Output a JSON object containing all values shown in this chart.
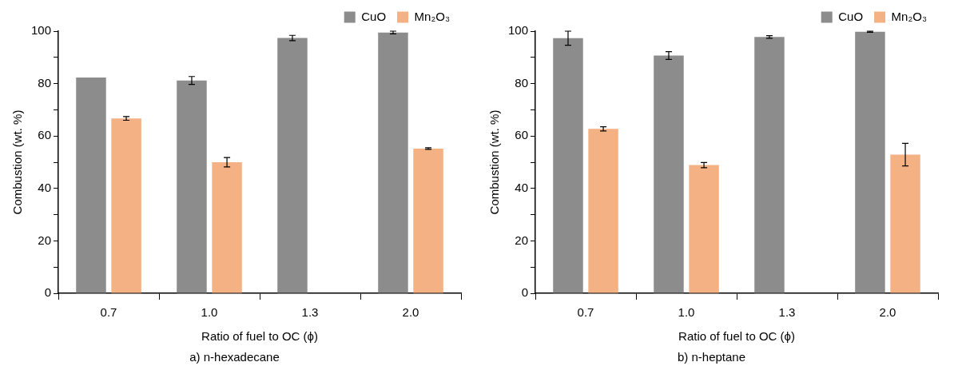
{
  "chart_data": [
    {
      "type": "bar",
      "title": "a) n-hexadecane",
      "xlabel": "Ratio of fuel to OC (ϕ)",
      "ylabel": "Combustion (wt. %)",
      "categories": [
        "0.7",
        "1.0",
        "1.3",
        "2.0"
      ],
      "series": [
        {
          "name": "CuO",
          "color": "#8c8c8c",
          "values": [
            82.3,
            81.2,
            97.4,
            99.5
          ],
          "errors": [
            null,
            1.5,
            1,
            0.5
          ]
        },
        {
          "name": "Mn₂O₃",
          "color": "#f4b183",
          "values": [
            66.7,
            50,
            null,
            55.2
          ],
          "errors": [
            0.7,
            1.8,
            null,
            0.3
          ]
        }
      ],
      "ylim": [
        0,
        100
      ],
      "yticks": [
        0,
        {
          "value": 10,
          "label": null
        },
        20,
        {
          "value": 30,
          "label": null
        },
        40,
        {
          "value": 50,
          "label": null
        },
        60,
        {
          "value": 70,
          "label": null
        },
        80,
        {
          "value": 90,
          "label": null
        },
        100
      ],
      "grid": false,
      "legend": "top right"
    },
    {
      "type": "bar",
      "title": "b) n-heptane",
      "xlabel": "Ratio of fuel to OC (ϕ)",
      "ylabel": "Combustion (wt. %)",
      "categories": [
        "0.7",
        "1.0",
        "1.3",
        "2.0"
      ],
      "series": [
        {
          "name": "CuO",
          "color": "#8c8c8c",
          "values": [
            97.3,
            90.7,
            97.8,
            99.8
          ],
          "errors": [
            2.7,
            1.5,
            0.5,
            0.2
          ]
        },
        {
          "name": "Mn₂O₃",
          "color": "#f4b183",
          "values": [
            62.7,
            48.9,
            null,
            52.9
          ],
          "errors": [
            0.8,
            1,
            null,
            4.3
          ]
        }
      ],
      "ylim": [
        0,
        100
      ],
      "yticks": [
        0,
        {
          "value": 10,
          "label": null
        },
        20,
        {
          "value": 30,
          "label": null
        },
        40,
        {
          "value": 50,
          "label": null
        },
        60,
        {
          "value": 70,
          "label": null
        },
        80,
        {
          "value": 90,
          "label": null
        },
        100
      ],
      "grid": false,
      "legend": "top right"
    }
  ]
}
